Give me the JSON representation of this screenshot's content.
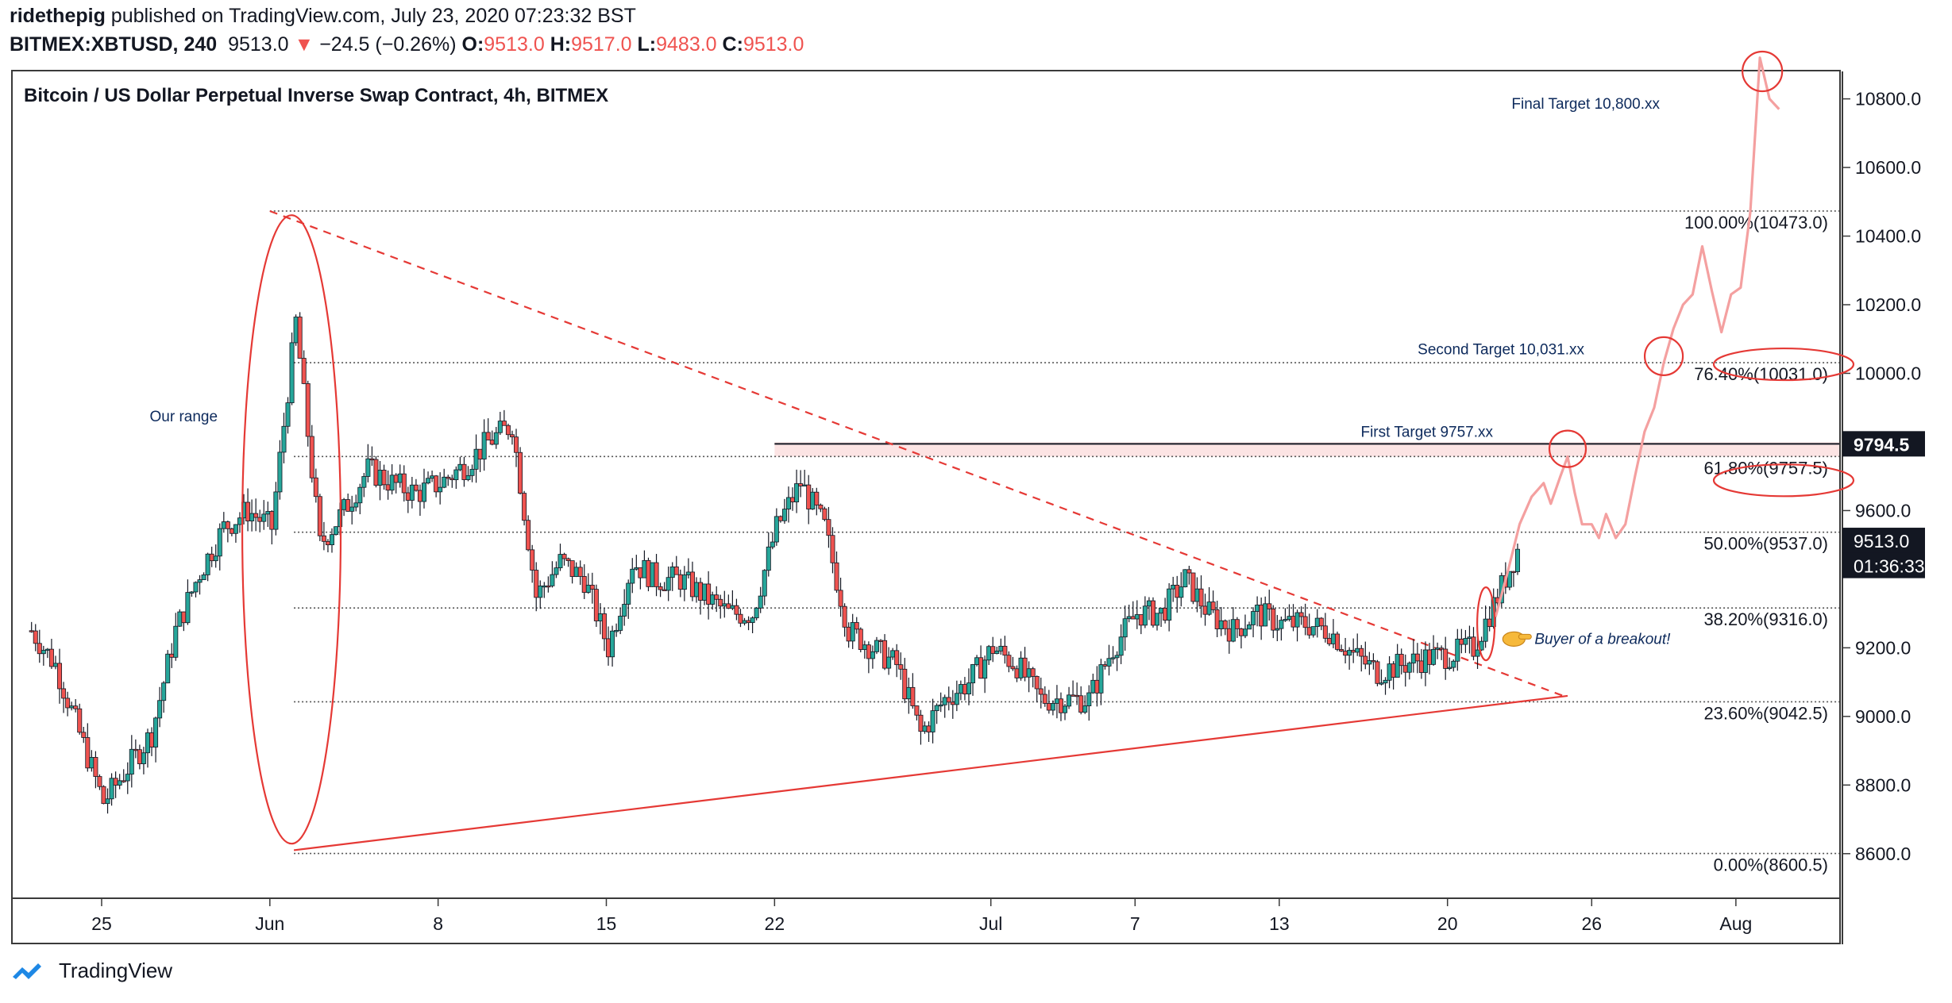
{
  "header": {
    "author": "ridethepig",
    "published": " published on TradingView.com, July 23, 2020 07:23:32 BST",
    "symbol": "BITMEX:XBTUSD, 240",
    "last": "9513.0",
    "arrow": "▼",
    "change": "−24.5 (−0.26%)",
    "o_label": "O:",
    "o_value": "9513.0",
    "h_label": "H:",
    "h_value": "9517.0",
    "l_label": "L:",
    "l_value": "9483.0",
    "c_label": "C:",
    "c_value": "9513.0"
  },
  "footer": {
    "brand": "TradingView",
    "logo_icon": "tradingview-logo-icon"
  },
  "colors": {
    "up": "#26a69a",
    "down": "#ef5350",
    "candle_border": "#131722",
    "projection": "#f4a0a0",
    "annotation": "#e53935",
    "resistance_band": "#fce4e4"
  },
  "chart_data": {
    "type": "candlestick",
    "title": "Bitcoin / US Dollar Perpetual Inverse Swap Contract, 4h, BITMEX",
    "x_ticks": [
      "25",
      "Jun",
      "8",
      "15",
      "22",
      "Jul",
      "7",
      "13",
      "20",
      "26",
      "Aug"
    ],
    "y_ticks": [
      "10800.0",
      "10600.0",
      "10400.0",
      "10200.0",
      "10000.0",
      "9600.0",
      "9200.0",
      "9000.0",
      "8800.0",
      "8600.0"
    ],
    "ylim": [
      8470,
      10880
    ],
    "xlim": [
      "2020-05-22",
      "2020-08-05"
    ],
    "price_labels": [
      {
        "text": "9794.5",
        "value": 9794.5
      },
      {
        "text": "9513.0",
        "value": 9513.0
      },
      {
        "text": "01:36:33",
        "value": 9440
      }
    ],
    "fib_levels": [
      {
        "label": "100.00%(10473.0)",
        "value": 10473.0
      },
      {
        "label": "76.40%(10031.0)",
        "value": 10031.0
      },
      {
        "label": "61.80%(9757.5)",
        "value": 9757.5
      },
      {
        "label": "50.00%(9537.0)",
        "value": 9537.0
      },
      {
        "label": "38.20%(9316.0)",
        "value": 9316.0
      },
      {
        "label": "23.60%(9042.5)",
        "value": 9042.5
      },
      {
        "label": "0.00%(8600.5)",
        "value": 8600.5
      }
    ],
    "annotations": [
      {
        "text": "Our range",
        "x": "2020-05-27",
        "y": 9860
      },
      {
        "text": "Final Target 10,800.xx",
        "x": "2020-07-26",
        "y": 10790
      },
      {
        "text": "Second Target 10,031.xx",
        "x": "2020-07-17",
        "y": 10065
      },
      {
        "text": "First Target 9757.xx",
        "x": "2020-07-15",
        "y": 9820
      },
      {
        "text": "Buyer of a breakout!",
        "x": "2020-07-22",
        "y": 9230
      }
    ],
    "resistance": {
      "value": 9794.5,
      "from": "2020-06-22",
      "to": "2020-08-05"
    },
    "triangle": {
      "upper": [
        {
          "x": "2020-06-01",
          "y": 10473
        },
        {
          "x": "2020-07-25",
          "y": 9055
        }
      ],
      "lower": [
        {
          "x": "2020-06-02",
          "y": 8610
        },
        {
          "x": "2020-07-25",
          "y": 9060
        }
      ]
    },
    "projection": [
      {
        "x": "2020-07-22",
        "y": 9290
      },
      {
        "x": "2020-07-22.5",
        "y": 9420
      },
      {
        "x": "2020-07-23",
        "y": 9560
      },
      {
        "x": "2020-07-23.5",
        "y": 9640
      },
      {
        "x": "2020-07-24",
        "y": 9680
      },
      {
        "x": "2020-07-24.3",
        "y": 9620
      },
      {
        "x": "2020-07-24.7",
        "y": 9700
      },
      {
        "x": "2020-07-25",
        "y": 9757
      },
      {
        "x": "2020-07-25.3",
        "y": 9650
      },
      {
        "x": "2020-07-25.6",
        "y": 9560
      },
      {
        "x": "2020-07-26",
        "y": 9560
      },
      {
        "x": "2020-07-26.3",
        "y": 9520
      },
      {
        "x": "2020-07-26.6",
        "y": 9590
      },
      {
        "x": "2020-07-27",
        "y": 9520
      },
      {
        "x": "2020-07-27.4",
        "y": 9560
      },
      {
        "x": "2020-07-27.8",
        "y": 9700
      },
      {
        "x": "2020-07-28.2",
        "y": 9830
      },
      {
        "x": "2020-07-28.6",
        "y": 9900
      },
      {
        "x": "2020-07-29",
        "y": 10031
      },
      {
        "x": "2020-07-29.4",
        "y": 10130
      },
      {
        "x": "2020-07-29.8",
        "y": 10200
      },
      {
        "x": "2020-07-30.2",
        "y": 10230
      },
      {
        "x": "2020-07-30.6",
        "y": 10370
      },
      {
        "x": "2020-07-31",
        "y": 10240
      },
      {
        "x": "2020-07-31.4",
        "y": 10120
      },
      {
        "x": "2020-07-31.8",
        "y": 10230
      },
      {
        "x": "2020-08-01.2",
        "y": 10250
      },
      {
        "x": "2020-08-01.6",
        "y": 10470
      },
      {
        "x": "2020-08-02",
        "y": 10920
      },
      {
        "x": "2020-08-02.4",
        "y": 10800
      },
      {
        "x": "2020-08-02.8",
        "y": 10770
      }
    ],
    "candles_anchor": [
      {
        "x": "2020-05-22",
        "y": 9250
      },
      {
        "x": "2020-05-23",
        "y": 9150
      },
      {
        "x": "2020-05-24",
        "y": 8950
      },
      {
        "x": "2020-05-25",
        "y": 8750
      },
      {
        "x": "2020-05-26",
        "y": 8850
      },
      {
        "x": "2020-05-27",
        "y": 8950
      },
      {
        "x": "2020-05-28",
        "y": 9250
      },
      {
        "x": "2020-05-29",
        "y": 9420
      },
      {
        "x": "2020-05-30",
        "y": 9550
      },
      {
        "x": "2020-05-31",
        "y": 9600
      },
      {
        "x": "2020-06-01",
        "y": 9550
      },
      {
        "x": "2020-06-02",
        "y": 10150
      },
      {
        "x": "2020-06-03",
        "y": 9500
      },
      {
        "x": "2020-06-04",
        "y": 9600
      },
      {
        "x": "2020-06-05",
        "y": 9720
      },
      {
        "x": "2020-06-06",
        "y": 9680
      },
      {
        "x": "2020-06-07",
        "y": 9650
      },
      {
        "x": "2020-06-08",
        "y": 9680
      },
      {
        "x": "2020-06-09",
        "y": 9730
      },
      {
        "x": "2020-06-10",
        "y": 9800
      },
      {
        "x": "2020-06-11",
        "y": 9850
      },
      {
        "x": "2020-06-12",
        "y": 9350
      },
      {
        "x": "2020-06-13",
        "y": 9450
      },
      {
        "x": "2020-06-14",
        "y": 9400
      },
      {
        "x": "2020-06-15",
        "y": 9200
      },
      {
        "x": "2020-06-16",
        "y": 9450
      },
      {
        "x": "2020-06-17",
        "y": 9400
      },
      {
        "x": "2020-06-18",
        "y": 9400
      },
      {
        "x": "2020-06-19",
        "y": 9350
      },
      {
        "x": "2020-06-20",
        "y": 9300
      },
      {
        "x": "2020-06-21",
        "y": 9300
      },
      {
        "x": "2020-06-22",
        "y": 9550
      },
      {
        "x": "2020-06-23",
        "y": 9680
      },
      {
        "x": "2020-06-24",
        "y": 9550
      },
      {
        "x": "2020-06-25",
        "y": 9250
      },
      {
        "x": "2020-06-26",
        "y": 9200
      },
      {
        "x": "2020-06-27",
        "y": 9150
      },
      {
        "x": "2020-06-28",
        "y": 8950
      },
      {
        "x": "2020-06-29",
        "y": 9050
      },
      {
        "x": "2020-06-30",
        "y": 9100
      },
      {
        "x": "2020-07-01",
        "y": 9200
      },
      {
        "x": "2020-07-02",
        "y": 9150
      },
      {
        "x": "2020-07-03",
        "y": 9050
      },
      {
        "x": "2020-07-04",
        "y": 9050
      },
      {
        "x": "2020-07-05",
        "y": 9050
      },
      {
        "x": "2020-07-06",
        "y": 9200
      },
      {
        "x": "2020-07-07",
        "y": 9300
      },
      {
        "x": "2020-07-08",
        "y": 9300
      },
      {
        "x": "2020-07-09",
        "y": 9400
      },
      {
        "x": "2020-07-10",
        "y": 9300
      },
      {
        "x": "2020-07-11",
        "y": 9250
      },
      {
        "x": "2020-07-12",
        "y": 9300
      },
      {
        "x": "2020-07-13",
        "y": 9270
      },
      {
        "x": "2020-07-14",
        "y": 9270
      },
      {
        "x": "2020-07-15",
        "y": 9250
      },
      {
        "x": "2020-07-16",
        "y": 9180
      },
      {
        "x": "2020-07-17",
        "y": 9130
      },
      {
        "x": "2020-07-18",
        "y": 9150
      },
      {
        "x": "2020-07-19",
        "y": 9170
      },
      {
        "x": "2020-07-20",
        "y": 9180
      },
      {
        "x": "2020-07-21",
        "y": 9200
      },
      {
        "x": "2020-07-22",
        "y": 9350
      },
      {
        "x": "2020-07-23",
        "y": 9513
      }
    ]
  }
}
